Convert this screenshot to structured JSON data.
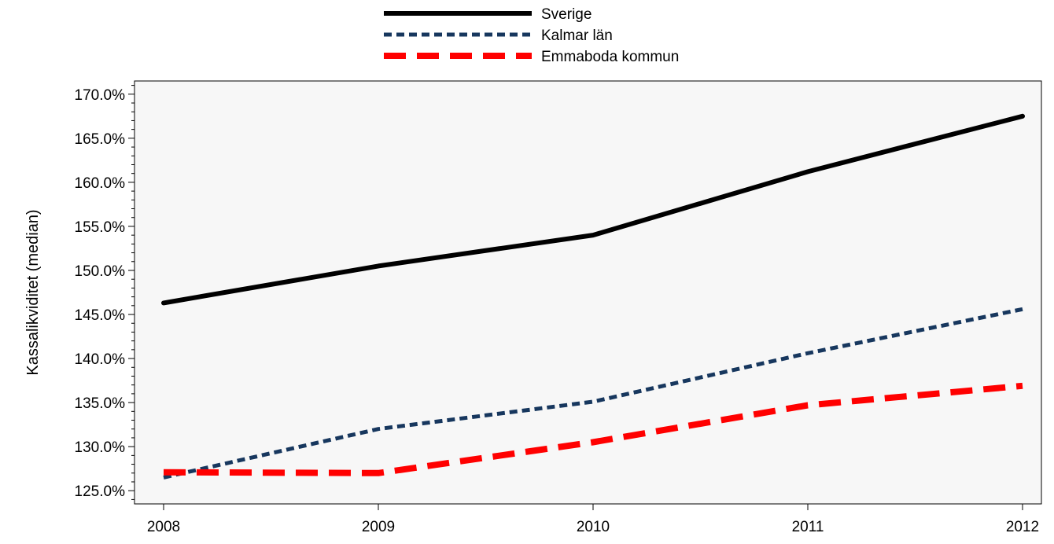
{
  "chart_data": {
    "type": "line",
    "title": "",
    "xlabel": "",
    "ylabel": "Kassalikviditet (median)",
    "x": [
      "2008",
      "2009",
      "2010",
      "2011",
      "2012"
    ],
    "y_ticks": [
      "125.0%",
      "130.0%",
      "135.0%",
      "140.0%",
      "145.0%",
      "150.0%",
      "155.0%",
      "160.0%",
      "165.0%",
      "170.0%"
    ],
    "ylim": [
      123.5,
      171.5
    ],
    "grid": false,
    "legend_position": "top-center",
    "series": [
      {
        "name": "Sverige",
        "values": [
          146.3,
          150.5,
          154.0,
          161.2,
          167.5
        ],
        "color": "#000000",
        "style": "solid"
      },
      {
        "name": "Kalmar län",
        "values": [
          126.5,
          132.0,
          135.1,
          140.6,
          145.6
        ],
        "color": "#17375e",
        "style": "dotted"
      },
      {
        "name": "Emmaboda kommun",
        "values": [
          127.1,
          127.0,
          130.5,
          134.7,
          136.9
        ],
        "color": "#ff0000",
        "style": "dashed"
      }
    ]
  }
}
